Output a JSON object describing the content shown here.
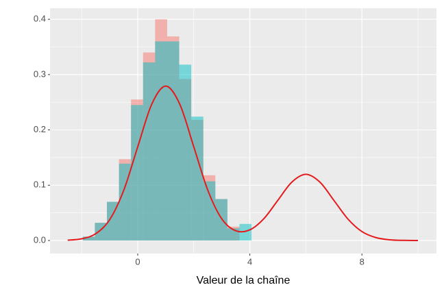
{
  "chart_data": {
    "type": "histogram",
    "x_label": "Valeur de la chaîne",
    "bins": [
      -1.96,
      -1.53,
      -1.1,
      -0.67,
      -0.24,
      0.19,
      0.62,
      1.05,
      1.48,
      1.91,
      2.34,
      2.77,
      3.2,
      3.63,
      4.06
    ],
    "series": [
      {
        "color": "#F8766D",
        "values": [
          0.007,
          0.032,
          0.07,
          0.147,
          0.255,
          0.34,
          0.4,
          0.369,
          0.292,
          0.218,
          0.118,
          0.075,
          0.025,
          0
        ]
      },
      {
        "color": "#00BFC4",
        "values": [
          0.007,
          0.032,
          0.07,
          0.139,
          0.245,
          0.322,
          0.36,
          0.36,
          0.318,
          0.224,
          0.107,
          0.075,
          0.022,
          0.03
        ]
      }
    ],
    "density": {
      "color": "#E41A1C",
      "x": [
        -2.5,
        -2,
        -1.5,
        -1,
        -0.5,
        0,
        0.5,
        1,
        1.5,
        2,
        2.5,
        3,
        3.5,
        4,
        4.5,
        5,
        5.5,
        6,
        6.5,
        7,
        7.5,
        8,
        8.5,
        9,
        9.5,
        10
      ],
      "y": [
        0.0006,
        0.0031,
        0.0123,
        0.0378,
        0.0907,
        0.1694,
        0.2465,
        0.2792,
        0.2465,
        0.1694,
        0.091,
        0.0391,
        0.0176,
        0.0193,
        0.0395,
        0.0727,
        0.1056,
        0.1197,
        0.1056,
        0.0726,
        0.0389,
        0.0162,
        0.0053,
        0.0013,
        0.0003,
        0.0
      ]
    },
    "xlim": [
      -3.13,
      10.66
    ],
    "ylim": [
      -0.0235,
      0.42
    ],
    "xticks": [
      0,
      4,
      8
    ],
    "yticks": [
      {
        "value": 0,
        "label": "0.0"
      },
      {
        "value": 0.1,
        "label": "0.1"
      },
      {
        "value": 0.2,
        "label": "0.2"
      },
      {
        "value": 0.3,
        "label": "0.3"
      },
      {
        "value": 0.4,
        "label": "0.4"
      }
    ],
    "x_minor_grid": [
      -2,
      2,
      6,
      10
    ],
    "y_minor_grid": [
      0.05,
      0.15,
      0.25,
      0.35
    ],
    "grid": true
  }
}
